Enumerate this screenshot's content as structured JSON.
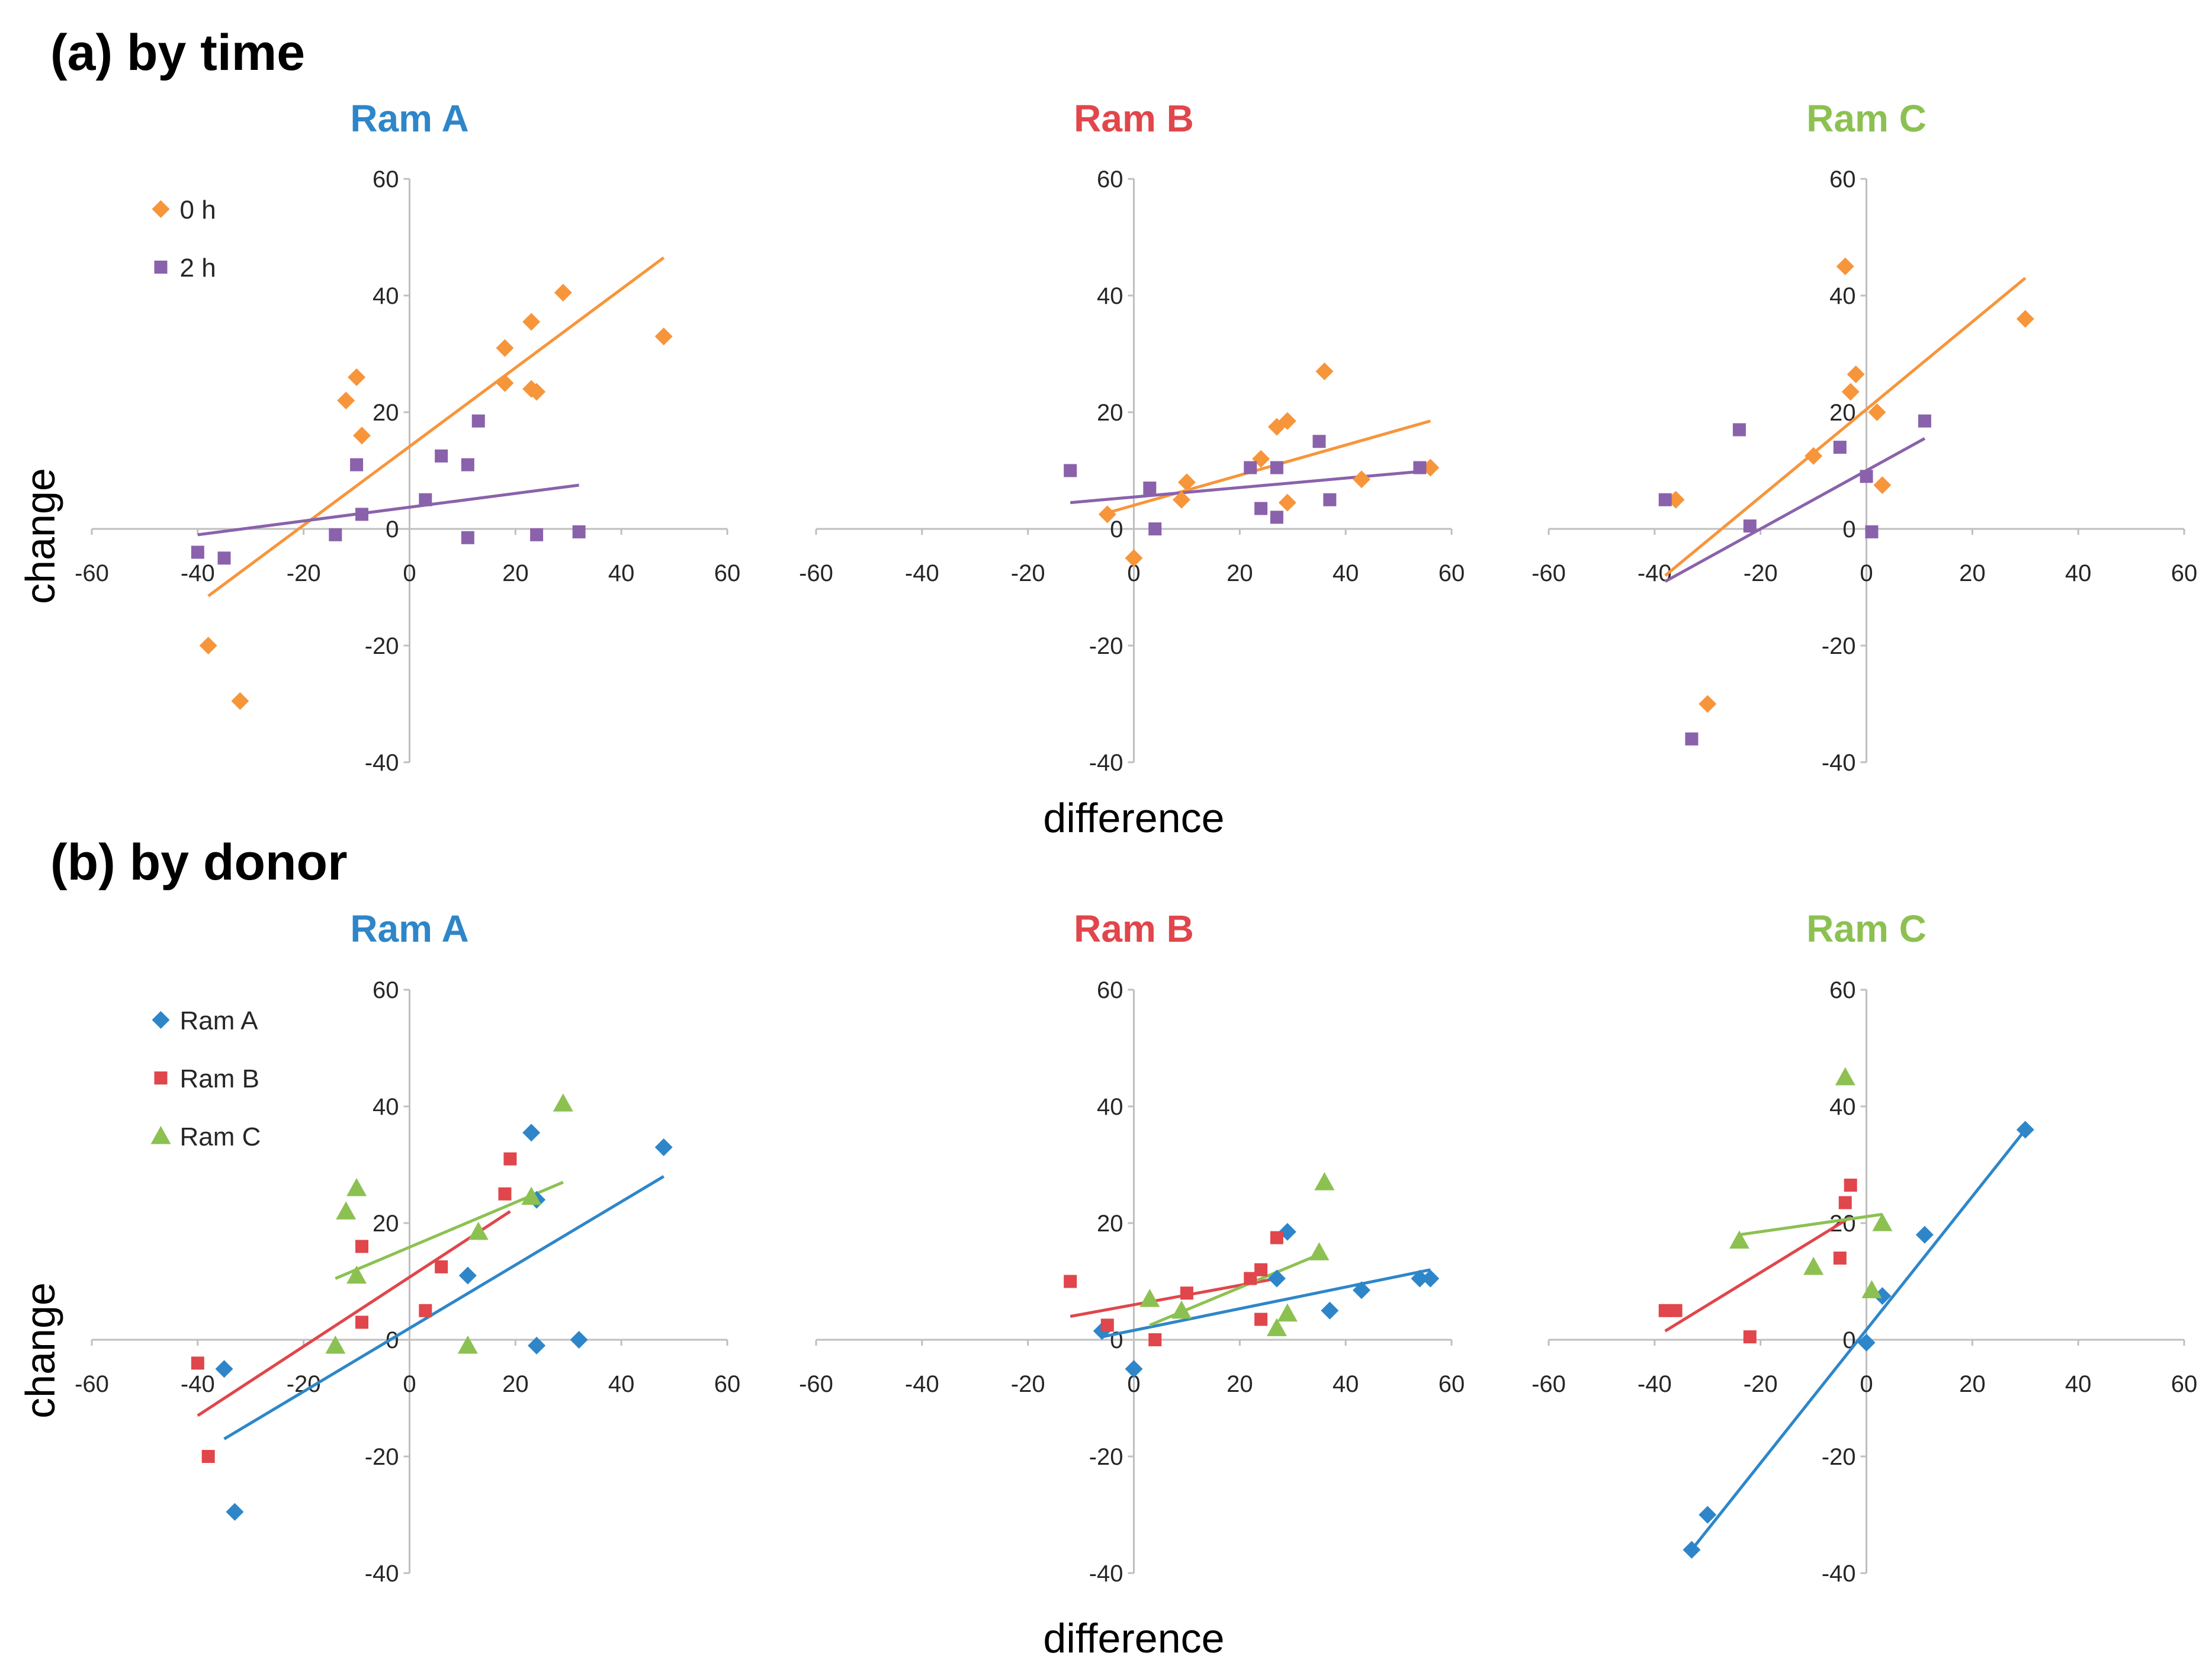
{
  "colors": {
    "ram_a": "#2e86c9",
    "ram_b": "#e0464b",
    "ram_c": "#8cc152",
    "h0": "#f7953b",
    "h2": "#8a62ab",
    "axis": "#bfbfbf"
  },
  "chart_data": [
    {
      "type": "scatter",
      "section": "(a) by time",
      "title": "Ram A",
      "title_color": "#2e86c9",
      "xlabel": "difference",
      "ylabel": "change",
      "xlim": [
        -60,
        60
      ],
      "ylim": [
        -40,
        60
      ],
      "xticks": [
        "-60",
        "-40",
        "-20",
        "0",
        "20",
        "40",
        "60"
      ],
      "yticks": [
        "60",
        "40",
        "20",
        "0",
        "-20",
        "-40"
      ],
      "legend": [
        {
          "label": "0 h",
          "marker": "diamond",
          "color": "#f7953b"
        },
        {
          "label": "2 h",
          "marker": "square",
          "color": "#8a62ab"
        }
      ],
      "series": [
        {
          "name": "0 h",
          "marker": "diamond",
          "color": "#f7953b",
          "points": [
            [
              -12,
              22
            ],
            [
              -10,
              26
            ],
            [
              -9,
              16
            ],
            [
              18,
              31
            ],
            [
              18,
              25
            ],
            [
              23,
              35.5
            ],
            [
              23,
              24
            ],
            [
              24,
              23.5
            ],
            [
              29,
              40.5
            ],
            [
              48,
              33
            ],
            [
              -38,
              -20
            ],
            [
              -32,
              -29.5
            ]
          ],
          "fit": [
            [
              -38,
              -11.5
            ],
            [
              48,
              46.5
            ]
          ]
        },
        {
          "name": "2 h",
          "marker": "square",
          "color": "#8a62ab",
          "points": [
            [
              -10,
              11
            ],
            [
              -9,
              2.5
            ],
            [
              -14,
              -1
            ],
            [
              -40,
              -4
            ],
            [
              -35,
              -5
            ],
            [
              3,
              5
            ],
            [
              6,
              12.5
            ],
            [
              11,
              11
            ],
            [
              11,
              -1.5
            ],
            [
              13,
              18.5
            ],
            [
              24,
              -1
            ],
            [
              32,
              -0.5
            ]
          ],
          "fit": [
            [
              -40,
              -1
            ],
            [
              32,
              7.5
            ]
          ]
        }
      ]
    },
    {
      "type": "scatter",
      "section": "(a) by time",
      "title": "Ram B",
      "title_color": "#e0464b",
      "xlabel": "difference",
      "ylabel": "change",
      "xlim": [
        -60,
        60
      ],
      "ylim": [
        -40,
        60
      ],
      "xticks": [
        "-60",
        "-40",
        "-20",
        "0",
        "20",
        "40",
        "60"
      ],
      "yticks": [
        "60",
        "40",
        "20",
        "0",
        "-20",
        "-40"
      ],
      "series": [
        {
          "name": "0 h",
          "marker": "diamond",
          "color": "#f7953b",
          "points": [
            [
              -5,
              2.5
            ],
            [
              0,
              -5
            ],
            [
              9,
              5
            ],
            [
              10,
              8
            ],
            [
              24,
              12
            ],
            [
              27,
              17.5
            ],
            [
              29,
              18.5
            ],
            [
              29,
              4.5
            ],
            [
              36,
              27
            ],
            [
              43,
              8.5
            ],
            [
              56,
              10.5
            ]
          ],
          "fit": [
            [
              -6,
              2.5
            ],
            [
              56,
              18.5
            ]
          ]
        },
        {
          "name": "2 h",
          "marker": "square",
          "color": "#8a62ab",
          "points": [
            [
              -12,
              10
            ],
            [
              3,
              7
            ],
            [
              4,
              0
            ],
            [
              22,
              10.5
            ],
            [
              24,
              3.5
            ],
            [
              27,
              2
            ],
            [
              27,
              10.5
            ],
            [
              35,
              15
            ],
            [
              37,
              5
            ],
            [
              54,
              10.5
            ]
          ],
          "fit": [
            [
              -12,
              4.5
            ],
            [
              56,
              10
            ]
          ]
        }
      ]
    },
    {
      "type": "scatter",
      "section": "(a) by time",
      "title": "Ram C",
      "title_color": "#8cc152",
      "xlabel": "difference",
      "ylabel": "change",
      "xlim": [
        -60,
        60
      ],
      "ylim": [
        -40,
        60
      ],
      "xticks": [
        "-60",
        "-40",
        "-20",
        "0",
        "20",
        "40",
        "60"
      ],
      "yticks": [
        "60",
        "40",
        "20",
        "0",
        "-20",
        "-40"
      ],
      "series": [
        {
          "name": "0 h",
          "marker": "diamond",
          "color": "#f7953b",
          "points": [
            [
              -36,
              5
            ],
            [
              -30,
              -30
            ],
            [
              -10,
              12.5
            ],
            [
              -4,
              45
            ],
            [
              -3,
              23.5
            ],
            [
              -2,
              26.5
            ],
            [
              2,
              20
            ],
            [
              3,
              7.5
            ],
            [
              30,
              36
            ]
          ],
          "fit": [
            [
              -38,
              -8
            ],
            [
              30,
              43
            ]
          ]
        },
        {
          "name": "2 h",
          "marker": "square",
          "color": "#8a62ab",
          "points": [
            [
              -38,
              5
            ],
            [
              -33,
              -36
            ],
            [
              -24,
              17
            ],
            [
              -22,
              0.5
            ],
            [
              -5,
              14
            ],
            [
              0,
              9
            ],
            [
              1,
              -0.5
            ],
            [
              11,
              18.5
            ]
          ],
          "fit": [
            [
              -38,
              -9
            ],
            [
              11,
              15.5
            ]
          ]
        }
      ]
    },
    {
      "type": "scatter",
      "section": "(b) by donor",
      "title": "Ram A",
      "title_color": "#2e86c9",
      "xlabel": "difference",
      "ylabel": "change",
      "xlim": [
        -60,
        60
      ],
      "ylim": [
        -40,
        60
      ],
      "xticks": [
        "-60",
        "-40",
        "-20",
        "0",
        "20",
        "40",
        "60"
      ],
      "yticks": [
        "60",
        "40",
        "20",
        "0",
        "-20",
        "-40"
      ],
      "legend": [
        {
          "label": "Ram A",
          "marker": "diamond",
          "color": "#2e86c9"
        },
        {
          "label": "Ram B",
          "marker": "square",
          "color": "#e0464b"
        },
        {
          "label": "Ram C",
          "marker": "triangle",
          "color": "#8cc152"
        }
      ],
      "series": [
        {
          "name": "Ram A",
          "marker": "diamond",
          "color": "#2e86c9",
          "points": [
            [
              -35,
              -5
            ],
            [
              -33,
              -29.5
            ],
            [
              11,
              11
            ],
            [
              23,
              35.5
            ],
            [
              24,
              24
            ],
            [
              24,
              -1
            ],
            [
              32,
              0
            ],
            [
              48,
              33
            ]
          ],
          "fit": [
            [
              -35,
              -17
            ],
            [
              48,
              28
            ]
          ]
        },
        {
          "name": "Ram B",
          "marker": "square",
          "color": "#e0464b",
          "points": [
            [
              -40,
              -4
            ],
            [
              -38,
              -20
            ],
            [
              -9,
              16
            ],
            [
              -9,
              3
            ],
            [
              3,
              5
            ],
            [
              6,
              12.5
            ],
            [
              18,
              25
            ],
            [
              19,
              31
            ]
          ],
          "fit": [
            [
              -40,
              -13
            ],
            [
              19,
              22
            ]
          ]
        },
        {
          "name": "Ram C",
          "marker": "triangle",
          "color": "#8cc152",
          "points": [
            [
              -14,
              -1
            ],
            [
              -12,
              22
            ],
            [
              -10,
              26
            ],
            [
              -10,
              11
            ],
            [
              11,
              -1
            ],
            [
              13,
              18.5
            ],
            [
              23,
              24.5
            ],
            [
              29,
              40.5
            ]
          ],
          "fit": [
            [
              -14,
              10.5
            ],
            [
              29,
              27
            ]
          ]
        }
      ]
    },
    {
      "type": "scatter",
      "section": "(b) by donor",
      "title": "Ram B",
      "title_color": "#e0464b",
      "xlabel": "difference",
      "ylabel": "change",
      "xlim": [
        -60,
        60
      ],
      "ylim": [
        -40,
        60
      ],
      "xticks": [
        "-60",
        "-40",
        "-20",
        "0",
        "20",
        "40",
        "60"
      ],
      "yticks": [
        "60",
        "40",
        "20",
        "0",
        "-20",
        "-40"
      ],
      "series": [
        {
          "name": "Ram A",
          "marker": "diamond",
          "color": "#2e86c9",
          "points": [
            [
              -6,
              1.5
            ],
            [
              0,
              -5
            ],
            [
              27,
              10.5
            ],
            [
              29,
              18.5
            ],
            [
              37,
              5
            ],
            [
              43,
              8.5
            ],
            [
              54,
              10.5
            ],
            [
              56,
              10.5
            ]
          ],
          "fit": [
            [
              -6,
              0.5
            ],
            [
              56,
              12
            ]
          ]
        },
        {
          "name": "Ram B",
          "marker": "square",
          "color": "#e0464b",
          "points": [
            [
              -12,
              10
            ],
            [
              -5,
              2.5
            ],
            [
              4,
              0
            ],
            [
              10,
              8
            ],
            [
              22,
              10.5
            ],
            [
              24,
              12
            ],
            [
              24,
              3.5
            ],
            [
              27,
              17.5
            ]
          ],
          "fit": [
            [
              -12,
              4
            ],
            [
              27,
              10.5
            ]
          ]
        },
        {
          "name": "Ram C",
          "marker": "triangle",
          "color": "#8cc152",
          "points": [
            [
              3,
              7
            ],
            [
              9,
              5
            ],
            [
              27,
              2
            ],
            [
              29,
              4.5
            ],
            [
              35,
              15
            ],
            [
              36,
              27
            ]
          ],
          "fit": [
            [
              3,
              2.5
            ],
            [
              36,
              15
            ]
          ]
        }
      ]
    },
    {
      "type": "scatter",
      "section": "(b) by donor",
      "title": "Ram C",
      "title_color": "#8cc152",
      "xlabel": "difference",
      "ylabel": "change",
      "xlim": [
        -60,
        60
      ],
      "ylim": [
        -40,
        60
      ],
      "xticks": [
        "-60",
        "-40",
        "-20",
        "0",
        "20",
        "40",
        "60"
      ],
      "yticks": [
        "60",
        "40",
        "20",
        "0",
        "-20",
        "-40"
      ],
      "series": [
        {
          "name": "Ram A",
          "marker": "diamond",
          "color": "#2e86c9",
          "points": [
            [
              -33,
              -36
            ],
            [
              -30,
              -30
            ],
            [
              0,
              -0.5
            ],
            [
              3,
              7.5
            ],
            [
              11,
              18
            ],
            [
              30,
              36
            ]
          ],
          "fit": [
            [
              -33,
              -36
            ],
            [
              30,
              36
            ]
          ]
        },
        {
          "name": "Ram B",
          "marker": "square",
          "color": "#e0464b",
          "points": [
            [
              -38,
              5
            ],
            [
              -36,
              5
            ],
            [
              -22,
              0.5
            ],
            [
              -5,
              14
            ],
            [
              -4,
              23.5
            ],
            [
              -3,
              26.5
            ]
          ],
          "fit": [
            [
              -38,
              1.5
            ],
            [
              -3,
              21
            ]
          ]
        },
        {
          "name": "Ram C",
          "marker": "triangle",
          "color": "#8cc152",
          "points": [
            [
              -24,
              17
            ],
            [
              -10,
              12.5
            ],
            [
              -4,
              45
            ],
            [
              1,
              8.5
            ],
            [
              3,
              20
            ]
          ],
          "fit": [
            [
              -24,
              18
            ],
            [
              3,
              21.5
            ]
          ]
        }
      ]
    }
  ]
}
